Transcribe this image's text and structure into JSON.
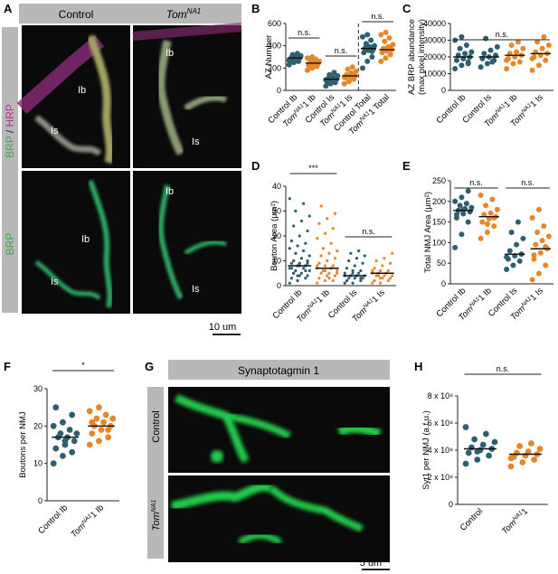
{
  "colors": {
    "control": "#2e5f6e",
    "tom": "#e8862a",
    "header_bar": "#b8b8b8",
    "micro_bg": "#0a0a0a"
  },
  "panel_letters": {
    "A": "A",
    "B": "B",
    "C": "C",
    "D": "D",
    "E": "E",
    "F": "F",
    "G": "G",
    "H": "H"
  },
  "panel_A": {
    "col_control": "Control",
    "col_tom": "Tom",
    "col_tom_sup": "NA1",
    "row_top_brp": "BRP",
    "row_top_sep": " / ",
    "row_top_hrp": "HRP",
    "row_bottom": "BRP",
    "labels": {
      "ib": "Ib",
      "is": "Is"
    },
    "scale_bar": "10 um"
  },
  "panel_G": {
    "header": "Synaptotagmin 1",
    "row_control": "Control",
    "row_tom": "Tom",
    "row_tom_sup": "NA1",
    "scale_bar": "5 um"
  },
  "chart_data": [
    {
      "id": "B",
      "type": "scatter",
      "ylabel": "AZ Number",
      "ylim": [
        0,
        600
      ],
      "yticks": [
        "0",
        "200",
        "400",
        "600"
      ],
      "categories": [
        "Control Ib",
        "TomNA1 Ib",
        "Control Is",
        "TomNA1 Is",
        "Control Total",
        "TomNA1 Total"
      ],
      "series": [
        {
          "category": "Control Ib",
          "median": 290,
          "values": [
            230,
            250,
            260,
            270,
            280,
            290,
            295,
            300,
            310,
            320,
            330,
            270,
            285,
            300
          ]
        },
        {
          "category": "TomNA1 Ib",
          "median": 245,
          "values": [
            180,
            200,
            215,
            225,
            235,
            240,
            245,
            250,
            260,
            270,
            280,
            290,
            300,
            230
          ]
        },
        {
          "category": "Control Is",
          "median": 100,
          "values": [
            40,
            60,
            70,
            80,
            90,
            100,
            105,
            115,
            130,
            140,
            160,
            95
          ]
        },
        {
          "category": "TomNA1 Is",
          "median": 130,
          "values": [
            60,
            80,
            100,
            115,
            125,
            130,
            140,
            155,
            170,
            190,
            210,
            120
          ]
        },
        {
          "category": "Control Total",
          "median": 375,
          "values": [
            200,
            260,
            300,
            340,
            360,
            370,
            380,
            390,
            400,
            420,
            450,
            480,
            500,
            350
          ]
        },
        {
          "category": "TomNA1 Total",
          "median": 365,
          "values": [
            260,
            290,
            320,
            340,
            355,
            365,
            375,
            390,
            410,
            440,
            470,
            500,
            520,
            380
          ]
        }
      ],
      "comparisons": [
        {
          "label": "n.s."
        },
        {
          "label": "n.s."
        },
        {
          "label": "n.s."
        }
      ]
    },
    {
      "id": "C",
      "type": "scatter",
      "ylabel": "AZ BRP abundance (max pixel intensity)",
      "ylim": [
        0,
        40000
      ],
      "yticks": [
        "0",
        "10000",
        "20000",
        "30000",
        "40000"
      ],
      "categories": [
        "Control Ib",
        "Control Is",
        "TomNA1 Ib",
        "TomNA1 Is"
      ],
      "series": [
        {
          "category": "Control Ib",
          "median": 20000,
          "values": [
            13000,
            15000,
            17000,
            18000,
            19000,
            20000,
            21000,
            22000,
            23000,
            25000,
            27000,
            30000,
            32000,
            16000
          ]
        },
        {
          "category": "Control Is",
          "median": 20000,
          "values": [
            14000,
            16000,
            18000,
            19000,
            20000,
            21000,
            22000,
            24000,
            26000,
            31000,
            17000
          ]
        },
        {
          "category": "TomNA1 Ib",
          "median": 21000,
          "values": [
            13000,
            16000,
            17000,
            19000,
            20000,
            21000,
            22000,
            23000,
            25000,
            27000,
            29000,
            18000
          ]
        },
        {
          "category": "TomNA1 Is",
          "median": 22000,
          "values": [
            12000,
            15000,
            18000,
            20000,
            21000,
            22000,
            23000,
            25000,
            27000,
            29000,
            32000,
            19000
          ]
        }
      ],
      "comparisons": [
        {
          "label": "n.s."
        }
      ]
    },
    {
      "id": "D",
      "type": "scatter",
      "ylabel": "Bouton Area (μm²)",
      "ylim": [
        0,
        40
      ],
      "yticks": [
        "0",
        "10",
        "20",
        "30",
        "40"
      ],
      "categories": [
        "Control Ib",
        "TomNA1 Ib",
        "Control Is",
        "TomNA1 Is"
      ],
      "series": [
        {
          "category": "Control Ib",
          "median": 8,
          "values": [
            1,
            2,
            3,
            3,
            4,
            4,
            5,
            5,
            6,
            6,
            7,
            7,
            8,
            8,
            9,
            9,
            10,
            10,
            11,
            12,
            13,
            14,
            15,
            16,
            17,
            18,
            20,
            22,
            24,
            26,
            28,
            30,
            33,
            35,
            4,
            6,
            7,
            8,
            9,
            5
          ]
        },
        {
          "category": "TomNA1 Ib",
          "median": 7,
          "values": [
            1,
            2,
            2,
            3,
            4,
            4,
            5,
            5,
            6,
            6,
            7,
            7,
            8,
            8,
            9,
            10,
            11,
            12,
            13,
            14,
            15,
            17,
            19,
            21,
            23,
            25,
            27,
            29,
            32,
            3,
            5,
            6,
            7,
            8,
            6
          ]
        },
        {
          "category": "Control Is",
          "median": 4,
          "values": [
            1,
            1,
            2,
            2,
            3,
            3,
            3,
            4,
            4,
            4,
            5,
            5,
            6,
            6,
            7,
            8,
            9,
            10,
            11,
            12,
            13,
            14,
            4,
            5,
            3
          ]
        },
        {
          "category": "TomNA1 Is",
          "median": 5,
          "values": [
            1,
            1,
            2,
            2,
            3,
            3,
            4,
            4,
            4,
            5,
            5,
            5,
            6,
            6,
            7,
            8,
            9,
            10,
            11,
            13,
            4,
            5,
            6,
            3
          ]
        }
      ],
      "comparisons": [
        {
          "label": "***"
        },
        {
          "label": "n.s."
        }
      ]
    },
    {
      "id": "E",
      "type": "scatter",
      "ylabel": "Total NMJ Area (μm²)",
      "ylim": [
        0,
        250
      ],
      "yticks": [
        "0",
        "50",
        "100",
        "150",
        "200",
        "250"
      ],
      "categories": [
        "Control Ib",
        "TomNA1 Ib",
        "Control Is",
        "TomNA1 Is"
      ],
      "series": [
        {
          "category": "Control Ib",
          "median": 178,
          "values": [
            88,
            120,
            150,
            160,
            170,
            175,
            178,
            182,
            185,
            190,
            195,
            200,
            210,
            225,
            168,
            180
          ]
        },
        {
          "category": "TomNA1 Ib",
          "median": 163,
          "values": [
            110,
            125,
            140,
            150,
            158,
            163,
            168,
            172,
            180,
            190,
            205,
            215,
            145,
            160
          ]
        },
        {
          "category": "Control Is",
          "median": 72,
          "values": [
            35,
            45,
            55,
            60,
            68,
            72,
            80,
            95,
            110,
            125,
            150,
            65
          ]
        },
        {
          "category": "TomNA1 Is",
          "median": 85,
          "values": [
            10,
            25,
            45,
            60,
            75,
            85,
            95,
            105,
            115,
            125,
            140,
            160,
            180,
            90,
            70
          ]
        }
      ],
      "comparisons": [
        {
          "label": "n.s."
        },
        {
          "label": "n.s."
        }
      ]
    },
    {
      "id": "F",
      "type": "scatter",
      "ylabel": "Boutons per NMJ",
      "ylim": [
        0,
        30
      ],
      "yticks": [
        "0",
        "10",
        "20",
        "30"
      ],
      "categories": [
        "Control Ib",
        "TomNA1 Ib"
      ],
      "series": [
        {
          "category": "Control Ib",
          "median": 17,
          "values": [
            10,
            12,
            13,
            14,
            15,
            16,
            17,
            17,
            18,
            18,
            19,
            20,
            21,
            23,
            25,
            16
          ]
        },
        {
          "category": "TomNA1 Ib",
          "median": 20,
          "values": [
            15,
            16,
            17,
            18,
            19,
            20,
            20,
            21,
            22,
            22,
            23,
            24,
            25,
            19,
            21
          ]
        }
      ],
      "comparisons": [
        {
          "label": "*"
        }
      ]
    },
    {
      "id": "H",
      "type": "scatter",
      "ylabel": "Syt1 per NMJ (a.f.u.)",
      "ylim": [
        0,
        800000000
      ],
      "yticks": [
        "0",
        "2 x 10⁸",
        "4 x 10⁸",
        "6 x 10⁸",
        "8 x 10⁸"
      ],
      "categories": [
        "Control",
        "TomNA1"
      ],
      "series": [
        {
          "category": "Control",
          "median": 410000000,
          "values": [
            300000000,
            330000000,
            360000000,
            380000000,
            400000000,
            410000000,
            420000000,
            440000000,
            460000000,
            480000000,
            520000000,
            570000000,
            390000000
          ]
        },
        {
          "category": "TomNA1",
          "median": 370000000,
          "values": [
            280000000,
            310000000,
            330000000,
            350000000,
            360000000,
            370000000,
            380000000,
            390000000,
            410000000,
            430000000,
            450000000,
            340000000
          ]
        }
      ],
      "comparisons": [
        {
          "label": "n.s."
        }
      ]
    }
  ]
}
